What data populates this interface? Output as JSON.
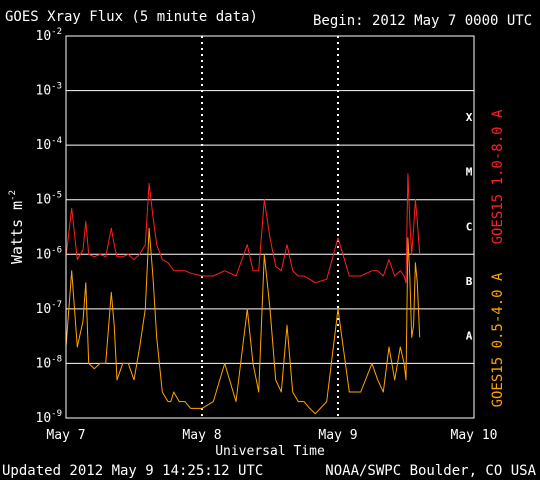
{
  "header": {
    "title": "GOES Xray Flux (5 minute data)",
    "begin": "Begin:  2012 May 7 0000 UTC"
  },
  "footer": {
    "updated": "Updated 2012 May  9 14:25:12 UTC",
    "credit": "NOAA/SWPC Boulder, CO USA"
  },
  "colors": {
    "background": "#000000",
    "axes": "#ffffff",
    "long_channel": "#ff2020",
    "short_channel": "#ffa500"
  },
  "chart_data": {
    "type": "line",
    "title": "GOES Xray Flux (5 minute data)",
    "xlabel": "Universal Time",
    "ylabel": "Watts m",
    "ylabel_superscript": "-2",
    "y_scale": "log",
    "ylim": [
      1e-09,
      0.01
    ],
    "xlim": [
      "2012-05-07 00:00",
      "2012-05-10 00:00"
    ],
    "x_ticks": [
      "May 7",
      "May 8",
      "May 9",
      "May 10"
    ],
    "y_ticks": [
      {
        "base": "10",
        "exp": "-9"
      },
      {
        "base": "10",
        "exp": "-8"
      },
      {
        "base": "10",
        "exp": "-7"
      },
      {
        "base": "10",
        "exp": "-6"
      },
      {
        "base": "10",
        "exp": "-5"
      },
      {
        "base": "10",
        "exp": "-4"
      },
      {
        "base": "10",
        "exp": "-3"
      },
      {
        "base": "10",
        "exp": "-2"
      }
    ],
    "flare_classes": [
      {
        "label": "A",
        "level": 1e-08
      },
      {
        "label": "B",
        "level": 1e-07
      },
      {
        "label": "C",
        "level": 1e-06
      },
      {
        "label": "M",
        "level": 1e-05
      },
      {
        "label": "X",
        "level": 0.0001
      }
    ],
    "grid": true,
    "series": [
      {
        "name": "GOES15 1.0-8.0 A",
        "color": "#ff2020",
        "x": [
          "2012-05-07 00:00",
          "2012-05-07 01:00",
          "2012-05-07 02:00",
          "2012-05-07 03:00",
          "2012-05-07 03:30",
          "2012-05-07 04:00",
          "2012-05-07 05:00",
          "2012-05-07 06:00",
          "2012-05-07 07:00",
          "2012-05-07 08:00",
          "2012-05-07 08:30",
          "2012-05-07 09:00",
          "2012-05-07 10:00",
          "2012-05-07 11:00",
          "2012-05-07 12:00",
          "2012-05-07 13:00",
          "2012-05-07 14:00",
          "2012-05-07 14:40",
          "2012-05-07 15:20",
          "2012-05-07 16:00",
          "2012-05-07 17:00",
          "2012-05-07 18:00",
          "2012-05-07 18:30",
          "2012-05-07 19:00",
          "2012-05-07 20:00",
          "2012-05-07 21:00",
          "2012-05-07 22:00",
          "2012-05-08 00:00",
          "2012-05-08 02:00",
          "2012-05-08 04:00",
          "2012-05-08 06:00",
          "2012-05-08 08:00",
          "2012-05-08 09:00",
          "2012-05-08 10:00",
          "2012-05-08 11:00",
          "2012-05-08 12:00",
          "2012-05-08 13:00",
          "2012-05-08 14:00",
          "2012-05-08 15:00",
          "2012-05-08 16:00",
          "2012-05-08 17:00",
          "2012-05-08 18:00",
          "2012-05-08 19:00",
          "2012-05-08 20:00",
          "2012-05-08 22:00",
          "2012-05-09 00:00",
          "2012-05-09 02:00",
          "2012-05-09 04:00",
          "2012-05-09 06:00",
          "2012-05-09 07:00",
          "2012-05-09 08:00",
          "2012-05-09 09:00",
          "2012-05-09 10:00",
          "2012-05-09 11:00",
          "2012-05-09 11:40",
          "2012-05-09 12:00",
          "2012-05-09 12:20",
          "2012-05-09 12:40",
          "2012-05-09 13:00",
          "2012-05-09 13:20",
          "2012-05-09 13:40",
          "2012-05-09 14:00",
          "2012-05-09 14:25"
        ],
        "values": [
          9e-07,
          7e-06,
          8e-07,
          1.2e-06,
          4e-06,
          1e-06,
          9e-07,
          1e-06,
          9e-07,
          3e-06,
          1.5e-06,
          9e-07,
          9e-07,
          1e-06,
          8e-07,
          1e-06,
          1.5e-06,
          2e-05,
          5e-06,
          1.5e-06,
          8e-07,
          7e-07,
          6e-07,
          5e-07,
          5e-07,
          5e-07,
          4.5e-07,
          4e-07,
          4e-07,
          5e-07,
          4e-07,
          1.5e-06,
          5e-07,
          5e-07,
          1e-05,
          2e-06,
          6e-07,
          5e-07,
          1.5e-06,
          5e-07,
          4e-07,
          4e-07,
          3.5e-07,
          3e-07,
          3.5e-07,
          2e-06,
          4e-07,
          4e-07,
          5e-07,
          5e-07,
          4e-07,
          8e-07,
          4e-07,
          5e-07,
          4e-07,
          3e-07,
          3e-05,
          4e-06,
          1e-06,
          3e-06,
          1e-05,
          4e-06,
          1e-06
        ]
      },
      {
        "name": "GOES15 0.5-4.0 A",
        "color": "#ffa500",
        "x": [
          "2012-05-07 00:00",
          "2012-05-07 01:00",
          "2012-05-07 02:00",
          "2012-05-07 03:00",
          "2012-05-07 03:30",
          "2012-05-07 04:00",
          "2012-05-07 05:00",
          "2012-05-07 06:00",
          "2012-05-07 07:00",
          "2012-05-07 08:00",
          "2012-05-07 08:30",
          "2012-05-07 09:00",
          "2012-05-07 10:00",
          "2012-05-07 11:00",
          "2012-05-07 12:00",
          "2012-05-07 13:00",
          "2012-05-07 14:00",
          "2012-05-07 14:40",
          "2012-05-07 15:20",
          "2012-05-07 16:00",
          "2012-05-07 17:00",
          "2012-05-07 18:00",
          "2012-05-07 18:30",
          "2012-05-07 19:00",
          "2012-05-07 20:00",
          "2012-05-07 21:00",
          "2012-05-07 22:00",
          "2012-05-08 00:00",
          "2012-05-08 02:00",
          "2012-05-08 04:00",
          "2012-05-08 06:00",
          "2012-05-08 08:00",
          "2012-05-08 09:00",
          "2012-05-08 10:00",
          "2012-05-08 11:00",
          "2012-05-08 12:00",
          "2012-05-08 13:00",
          "2012-05-08 14:00",
          "2012-05-08 15:00",
          "2012-05-08 16:00",
          "2012-05-08 17:00",
          "2012-05-08 18:00",
          "2012-05-08 19:00",
          "2012-05-08 20:00",
          "2012-05-08 22:00",
          "2012-05-09 00:00",
          "2012-05-09 02:00",
          "2012-05-09 04:00",
          "2012-05-09 06:00",
          "2012-05-09 07:00",
          "2012-05-09 08:00",
          "2012-05-09 09:00",
          "2012-05-09 10:00",
          "2012-05-09 11:00",
          "2012-05-09 11:40",
          "2012-05-09 12:00",
          "2012-05-09 12:20",
          "2012-05-09 12:40",
          "2012-05-09 13:00",
          "2012-05-09 13:20",
          "2012-05-09 13:40",
          "2012-05-09 14:00",
          "2012-05-09 14:25"
        ],
        "values": [
          2e-08,
          5e-07,
          2e-08,
          6e-08,
          3e-07,
          1e-08,
          8e-09,
          1e-08,
          1e-08,
          2e-07,
          5e-08,
          5e-09,
          1e-08,
          1e-08,
          5e-09,
          2e-08,
          1e-07,
          3e-06,
          4e-07,
          3e-08,
          3e-09,
          2e-09,
          2e-09,
          3e-09,
          2e-09,
          2e-09,
          1.5e-09,
          1.5e-09,
          2e-09,
          1e-08,
          2e-09,
          1e-07,
          1e-08,
          3e-09,
          1e-06,
          1e-07,
          5e-09,
          3e-09,
          5e-08,
          3e-09,
          2e-09,
          2e-09,
          1.5e-09,
          1.2e-09,
          2e-09,
          1e-07,
          3e-09,
          3e-09,
          1e-08,
          5e-09,
          3e-09,
          2e-08,
          5e-09,
          2e-08,
          1e-08,
          5e-09,
          2e-06,
          4e-07,
          3e-08,
          5e-08,
          7e-07,
          3e-07,
          3e-08
        ]
      }
    ]
  }
}
